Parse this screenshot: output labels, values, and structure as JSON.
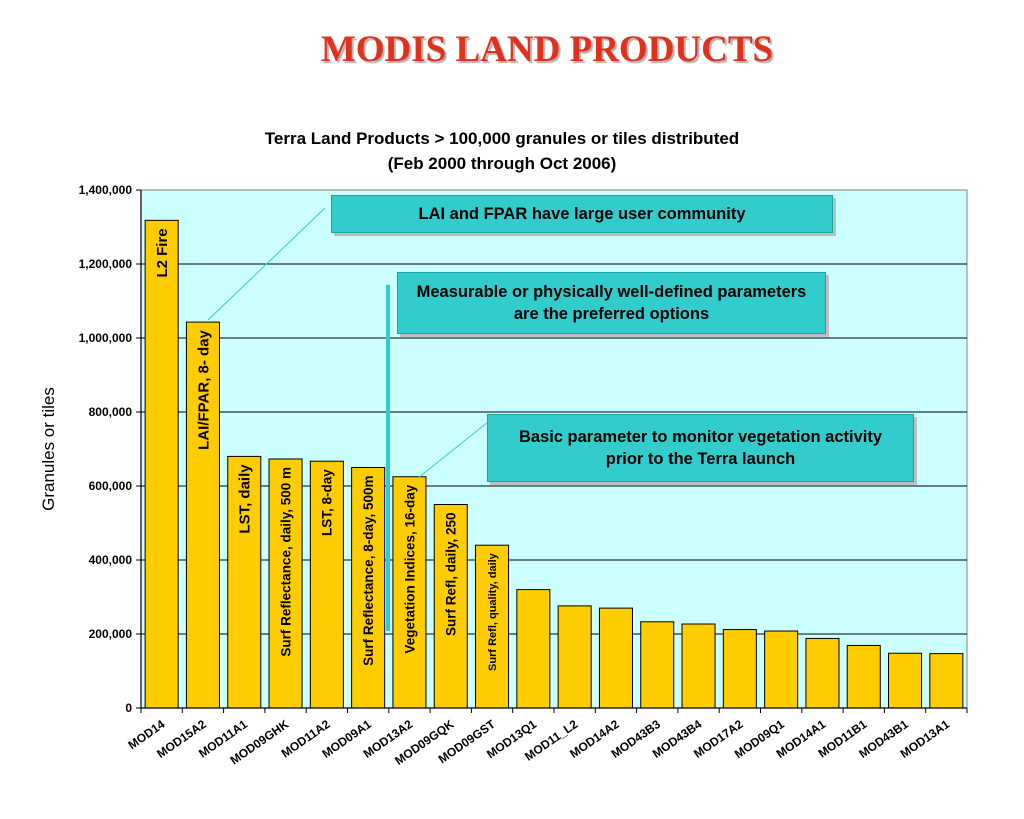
{
  "slide_title": "MODIS LAND PRODUCTS",
  "callouts": {
    "lai": "LAI and FPAR have large user community",
    "measurable": "Measurable or physically well-defined parameters are the preferred options",
    "basic": "Basic parameter to monitor vegetation activity prior to the Terra launch"
  },
  "colors": {
    "bar": "#ffcc00",
    "plot_background": "#ccffff",
    "callout": "#33cccc",
    "title": "#e0301e"
  },
  "chart_data": {
    "type": "bar",
    "title": "Terra Land Products > 100,000 granules or tiles distributed",
    "subtitle": "(Feb 2000 through Oct 2006)",
    "xlabel": "",
    "ylabel": "Granules or tiles",
    "ylim": [
      0,
      1400000
    ],
    "yticks": [
      "0",
      "200,000",
      "400,000",
      "600,000",
      "800,000",
      "1,000,000",
      "1,200,000",
      "1,400,000"
    ],
    "grid": true,
    "categories": [
      "MOD14",
      "MOD15A2",
      "MOD11A1",
      "MOD09GHK",
      "MOD11A2",
      "MOD09A1",
      "MOD13A2",
      "MOD09GQK",
      "MOD09GST",
      "MOD13Q1",
      "MOD11_L2",
      "MOD14A2",
      "MOD43B3",
      "MOD43B4",
      "MOD17A2",
      "MOD09Q1",
      "MOD14A1",
      "MOD11B1",
      "MOD43B1",
      "MOD13A1"
    ],
    "values": [
      1318000,
      1043000,
      680000,
      673000,
      667000,
      650000,
      625000,
      550000,
      440000,
      320000,
      276000,
      270000,
      233000,
      227000,
      212000,
      208000,
      188000,
      169000,
      148000,
      147000
    ],
    "bar_labels": [
      "L2 Fire",
      "LAI/FPAR, 8- day",
      "LST, daily",
      "Surf Reflectance, daily, 500 m",
      "LST, 8-day",
      "Surf Reflectance, 8-day, 500m",
      "Vegetation Indices, 16-day",
      "Surf Refl, daily, 250",
      "Surf Refl, quality, daily",
      "",
      "",
      "",
      "",
      "",
      "",
      "",
      "",
      "",
      "",
      ""
    ]
  }
}
